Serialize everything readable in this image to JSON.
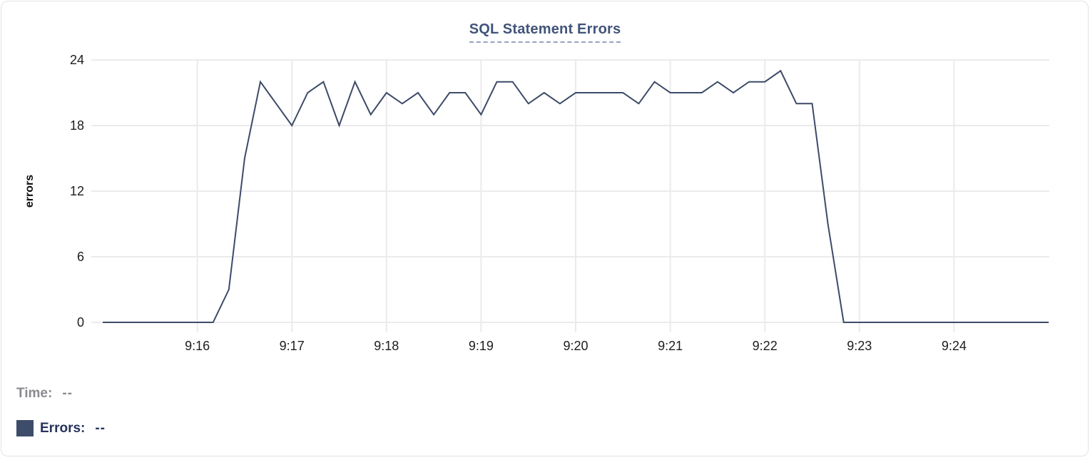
{
  "card": {
    "border_color": "#e3e3e8",
    "background": "#ffffff"
  },
  "title": "SQL Statement Errors",
  "tooltip": {
    "time_label": "Time:",
    "time_value": "--",
    "errors_label": "Errors:",
    "errors_value": "--",
    "time_color": "#8a8a90",
    "errors_color": "#26335a",
    "swatch_color": "#3d4c6a"
  },
  "chart_data": {
    "type": "line",
    "title": "SQL Statement Errors",
    "xlabel": "",
    "ylabel": "errors",
    "series_name": "Errors",
    "line_color": "#3d4a68",
    "grid": true,
    "grid_color": "#ebebee",
    "tick_color": "#1d1d1f",
    "legend_position": "bottom-left",
    "ylim": [
      0,
      24
    ],
    "y_ticks": [
      0,
      6,
      12,
      18,
      24
    ],
    "x_tick_labels": [
      "9:16",
      "9:17",
      "9:18",
      "9:19",
      "9:20",
      "9:21",
      "9:22",
      "9:23",
      "9:24"
    ],
    "x": [
      "9:15:00",
      "9:15:10",
      "9:15:20",
      "9:15:30",
      "9:15:40",
      "9:15:50",
      "9:16:00",
      "9:16:10",
      "9:16:20",
      "9:16:30",
      "9:16:40",
      "9:16:50",
      "9:17:00",
      "9:17:10",
      "9:17:20",
      "9:17:30",
      "9:17:40",
      "9:17:50",
      "9:18:00",
      "9:18:10",
      "9:18:20",
      "9:18:30",
      "9:18:40",
      "9:18:50",
      "9:19:00",
      "9:19:10",
      "9:19:20",
      "9:19:30",
      "9:19:40",
      "9:19:50",
      "9:20:00",
      "9:20:10",
      "9:20:20",
      "9:20:30",
      "9:20:40",
      "9:20:50",
      "9:21:00",
      "9:21:10",
      "9:21:20",
      "9:21:30",
      "9:21:40",
      "9:21:50",
      "9:22:00",
      "9:22:10",
      "9:22:20",
      "9:22:30",
      "9:22:40",
      "9:22:50",
      "9:23:00",
      "9:23:10",
      "9:23:20",
      "9:23:30",
      "9:23:40",
      "9:23:50",
      "9:24:00",
      "9:24:10",
      "9:24:20",
      "9:24:30",
      "9:24:40",
      "9:24:50",
      "9:25:00"
    ],
    "values": [
      0,
      0,
      0,
      0,
      0,
      0,
      0,
      0,
      3,
      15,
      22,
      20,
      18,
      21,
      22,
      18,
      22,
      19,
      21,
      20,
      21,
      19,
      21,
      21,
      19,
      22,
      22,
      20,
      21,
      20,
      21,
      21,
      21,
      21,
      20,
      22,
      21,
      21,
      21,
      22,
      21,
      22,
      22,
      23,
      20,
      20,
      9,
      0,
      0,
      0,
      0,
      0,
      0,
      0,
      0,
      0,
      0,
      0,
      0,
      0,
      0
    ]
  }
}
